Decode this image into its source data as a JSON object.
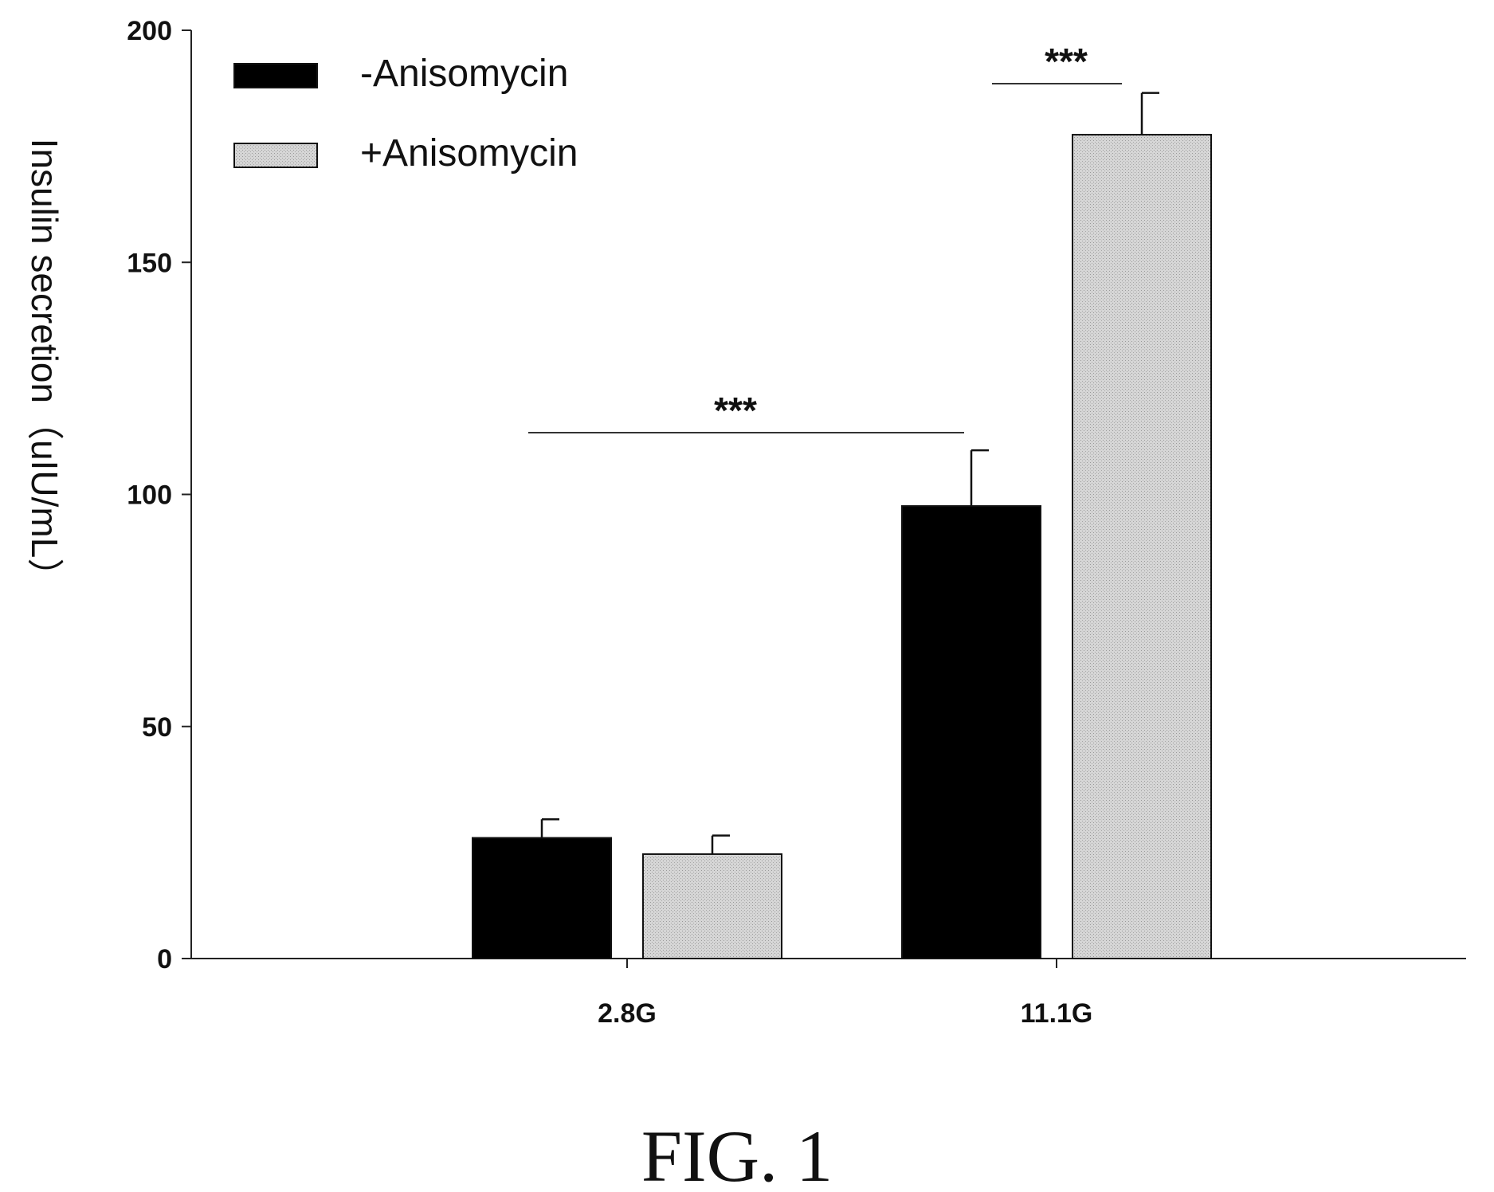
{
  "chart_data": {
    "type": "bar",
    "categories": [
      "2.8G",
      "11.1G"
    ],
    "series": [
      {
        "name": "-Anisomycin",
        "values": [
          26,
          97.5
        ],
        "errors": [
          4,
          12
        ],
        "color": "#000000"
      },
      {
        "name": "+Anisomycin",
        "values": [
          22.5,
          177.5
        ],
        "errors": [
          4,
          9
        ],
        "color": "#c8c8c8"
      }
    ],
    "ylabel": "Insulin secretion（uIU/mL）",
    "xlabel": "",
    "ylim": [
      0,
      200
    ],
    "yticks": [
      0,
      50,
      100,
      150,
      200
    ],
    "grid": false,
    "legend_position": "top-left",
    "significance": [
      {
        "label": "***",
        "between": "2.8G -Anisomycin vs 11.1G -Anisomycin"
      },
      {
        "label": "***",
        "between": "11.1G -Anisomycin vs 11.1G +Anisomycin"
      }
    ]
  },
  "caption": "FIG. 1"
}
